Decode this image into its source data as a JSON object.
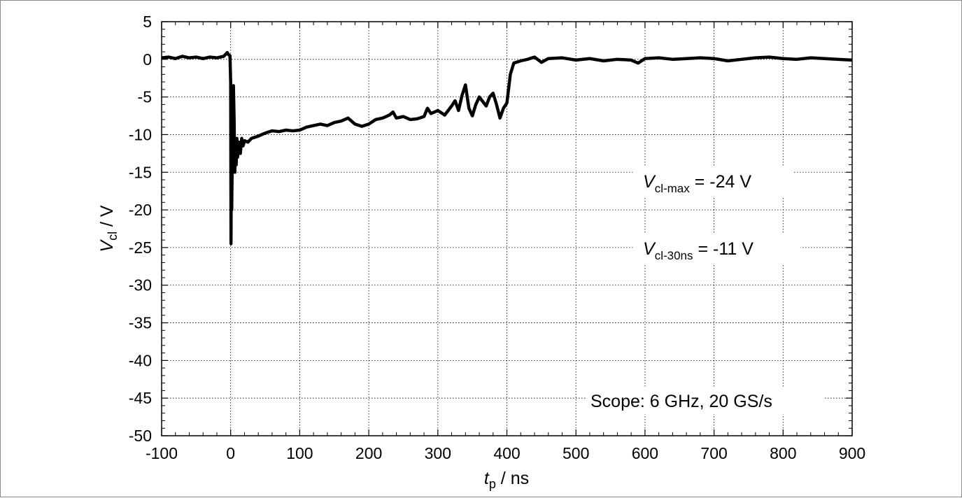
{
  "chart_data": {
    "type": "line",
    "xlabel": {
      "var": "t",
      "sub": "p",
      "unit": " / ns"
    },
    "ylabel": {
      "var": "V",
      "sub": "cl",
      "unit": " / V"
    },
    "xlim": [
      -100,
      900
    ],
    "ylim": [
      -50,
      5
    ],
    "xticks": [
      -100,
      0,
      100,
      200,
      300,
      400,
      500,
      600,
      700,
      800,
      900
    ],
    "yticks": [
      5,
      0,
      -5,
      -10,
      -15,
      -20,
      -25,
      -30,
      -35,
      -40,
      -45,
      -50
    ],
    "grid": true,
    "series": [
      {
        "color": "#000000",
        "x": [
          -100,
          -90,
          -80,
          -70,
          -60,
          -50,
          -40,
          -30,
          -20,
          -10,
          -5,
          -3,
          -1,
          0,
          0.5,
          1,
          1.5,
          2,
          2.5,
          3,
          4,
          5,
          6,
          7,
          8,
          9,
          10,
          12,
          14,
          16,
          18,
          20,
          25,
          30,
          40,
          50,
          60,
          70,
          80,
          90,
          100,
          110,
          120,
          130,
          140,
          150,
          160,
          170,
          180,
          190,
          200,
          210,
          220,
          230,
          235,
          240,
          250,
          260,
          270,
          280,
          285,
          290,
          300,
          310,
          320,
          325,
          330,
          335,
          340,
          345,
          350,
          355,
          360,
          365,
          370,
          375,
          380,
          385,
          390,
          395,
          400,
          405,
          410,
          420,
          430,
          440,
          450,
          460,
          480,
          500,
          520,
          540,
          560,
          580,
          590,
          600,
          620,
          640,
          660,
          680,
          700,
          720,
          740,
          760,
          780,
          800,
          820,
          840,
          860,
          880,
          900
        ],
        "y": [
          0.2,
          0.3,
          0.1,
          0.4,
          0.2,
          0.3,
          0.1,
          0.3,
          0.2,
          0.4,
          0.9,
          0.6,
          0.5,
          -3,
          -24.5,
          -12,
          -20,
          -16,
          -10,
          -6,
          -3.5,
          -8,
          -15,
          -12,
          -14,
          -10.5,
          -13,
          -11,
          -12.5,
          -10.5,
          -11.5,
          -10.8,
          -11,
          -10.5,
          -10.2,
          -9.8,
          -9.5,
          -9.6,
          -9.4,
          -9.5,
          -9.4,
          -9.0,
          -8.8,
          -8.6,
          -8.8,
          -8.4,
          -8.2,
          -7.8,
          -8.6,
          -8.9,
          -8.6,
          -8.0,
          -7.8,
          -7.4,
          -7.0,
          -7.8,
          -7.6,
          -8.0,
          -7.9,
          -7.6,
          -6.5,
          -7.2,
          -6.8,
          -7.4,
          -6.2,
          -5.5,
          -6.8,
          -4.8,
          -3.4,
          -6.5,
          -7.5,
          -6.0,
          -5.0,
          -5.6,
          -6.2,
          -5.0,
          -4.5,
          -6.0,
          -7.8,
          -6.5,
          -5.8,
          -2.0,
          -0.5,
          -0.2,
          0.0,
          0.3,
          -0.4,
          0.1,
          0.2,
          -0.1,
          0.1,
          -0.2,
          0.0,
          -0.1,
          -0.5,
          0.1,
          0.2,
          0.0,
          0.1,
          0.2,
          0.1,
          -0.2,
          0.0,
          0.2,
          0.3,
          0.1,
          0.0,
          0.2,
          0.1,
          0.0,
          -0.1
        ]
      }
    ],
    "annotations": [
      {
        "var": "V",
        "sub": "cl-max",
        "text": " = -24 V"
      },
      {
        "var": "V",
        "sub": "cl-30ns",
        "text": " = -11 V"
      },
      {
        "text": "Scope: 6 GHz, 20 GS/s"
      }
    ]
  }
}
